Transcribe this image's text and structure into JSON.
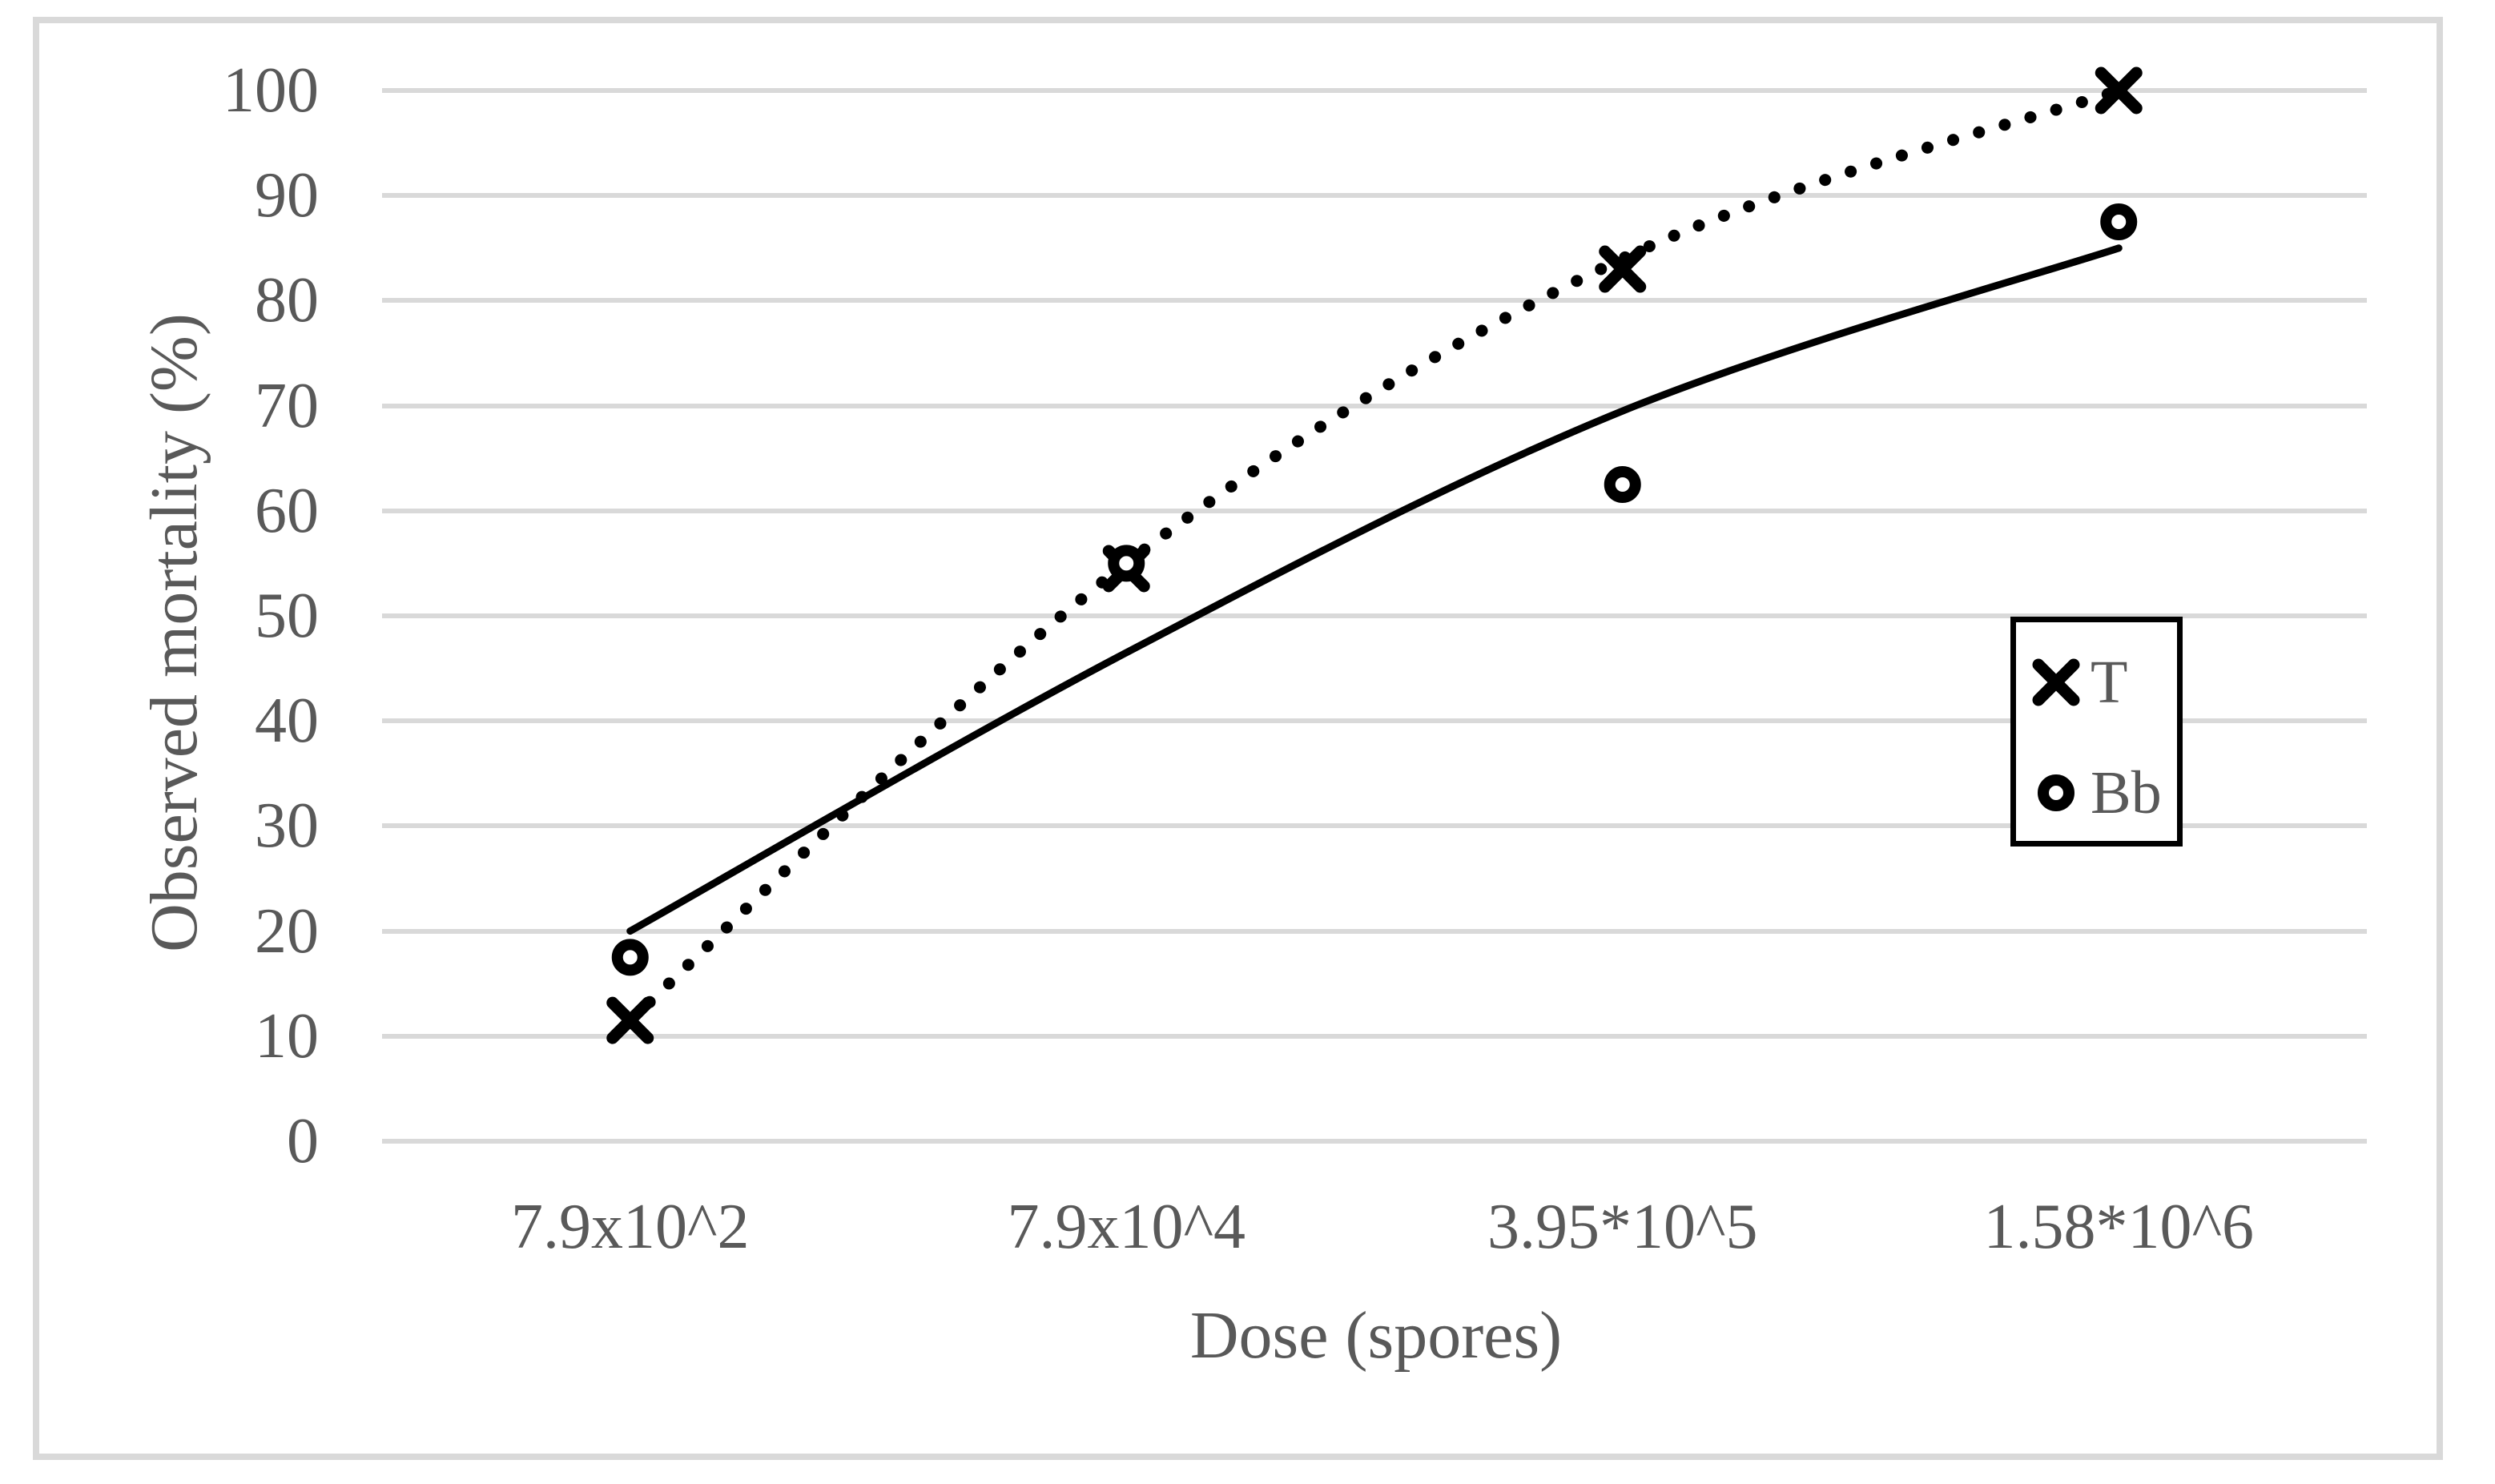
{
  "chart_data": {
    "type": "scatter",
    "title": "",
    "xlabel": "Dose (spores)",
    "ylabel": "Observed mortality (%)",
    "categories": [
      "7.9x10^2",
      "7.9x10^4",
      "3.95*10^5",
      "1.58*10^6"
    ],
    "y_ticks": [
      0,
      10,
      20,
      30,
      40,
      50,
      60,
      70,
      80,
      90,
      100
    ],
    "ylim": [
      0,
      100
    ],
    "grid": "horizontal-only",
    "legend_position": "middle-right",
    "series": [
      {
        "name": "T",
        "marker": "x-cross",
        "line_style": "dotted",
        "color": "#000000",
        "values": [
          11.5,
          54.5,
          83,
          100
        ],
        "trendline_values": [
          11.5,
          55,
          84,
          100
        ]
      },
      {
        "name": "Bb",
        "marker": "open-circle",
        "line_style": "solid",
        "color": "#000000",
        "values": [
          17.5,
          55,
          62.5,
          87.5
        ],
        "trendline_values": [
          20,
          46.5,
          69.5,
          85
        ]
      }
    ],
    "colors": {
      "series": "#000000",
      "text": "#595959",
      "gridline": "#d9d9d9",
      "frame_border": "#d9d9d9",
      "background": "#ffffff",
      "legend_border": "#000000"
    }
  }
}
